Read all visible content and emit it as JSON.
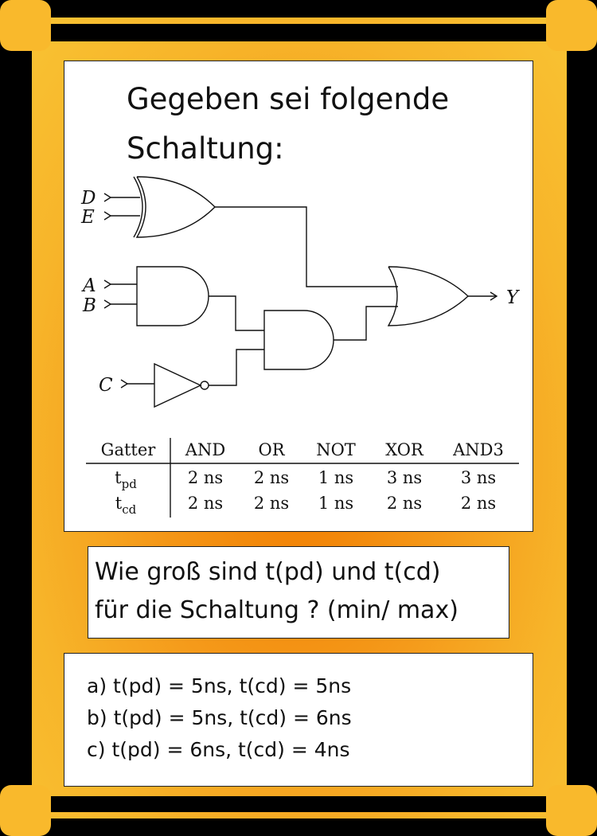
{
  "question_card": {
    "title_line1": "Gegeben sei folgende",
    "title_line2": "Schaltung:",
    "circuit": {
      "inputs": [
        "D",
        "E",
        "A",
        "B",
        "C"
      ],
      "output": "Y",
      "gates": [
        "XOR",
        "AND",
        "NOT",
        "AND3",
        "OR"
      ]
    },
    "timing_table": {
      "corner_header": "Gatter",
      "columns": [
        "AND",
        "OR",
        "NOT",
        "XOR",
        "AND3"
      ],
      "rows": [
        {
          "label": "t",
          "sub": "pd",
          "values": [
            "2 ns",
            "2 ns",
            "1 ns",
            "3 ns",
            "3 ns"
          ]
        },
        {
          "label": "t",
          "sub": "cd",
          "values": [
            "2 ns",
            "2 ns",
            "1 ns",
            "2 ns",
            "2 ns"
          ]
        }
      ]
    },
    "question_line1": "Wie groß sind t(pd) und t(cd)",
    "question_line2": "für die Schaltung ? (min/ max)",
    "answers": [
      "a) t(pd) = 5ns, t(cd) = 5ns",
      "b) t(pd) = 5ns, t(cd) = 6ns",
      "c) t(pd) = 6ns, t(cd) = 4ns"
    ],
    "colors": {
      "frame_outer": "#000000",
      "frame_orange_center": "#f07c00",
      "frame_orange_edge": "#f9c434",
      "panel_bg": "#ffffff",
      "ink": "#111111"
    }
  }
}
